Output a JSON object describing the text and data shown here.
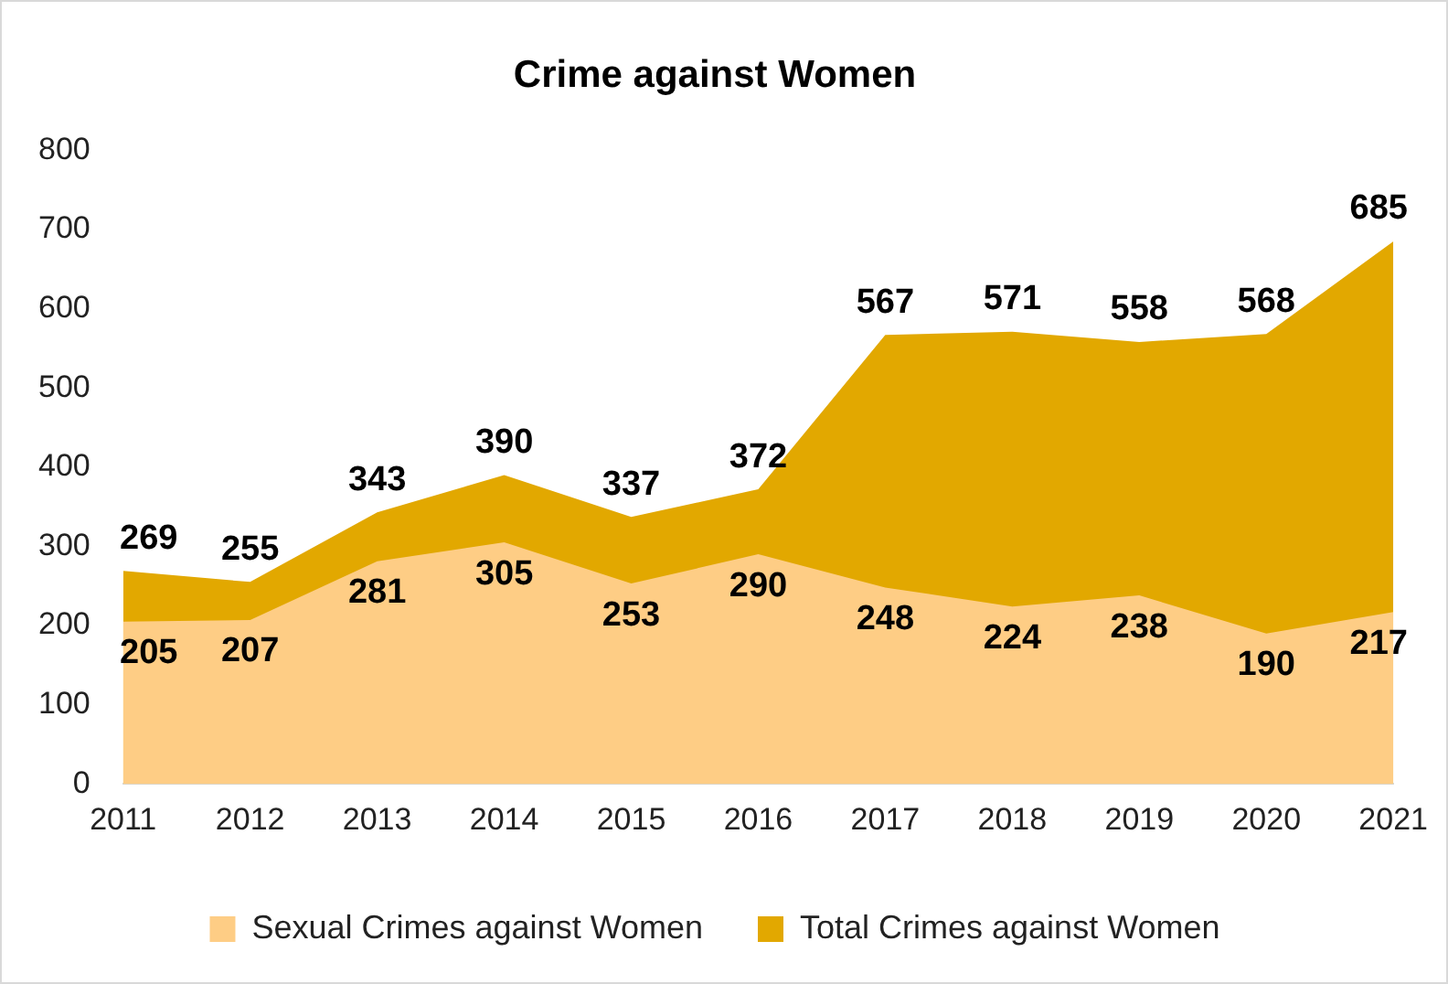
{
  "chart_data": {
    "type": "area",
    "title": "Crime against Women",
    "categories": [
      "2011",
      "2012",
      "2013",
      "2014",
      "2015",
      "2016",
      "2017",
      "2018",
      "2019",
      "2020",
      "2021"
    ],
    "series": [
      {
        "name": "Total Crimes against Women",
        "color": "#e2a800",
        "values": [
          269,
          255,
          343,
          390,
          337,
          372,
          567,
          571,
          558,
          568,
          685
        ]
      },
      {
        "name": "Sexual Crimes against Women",
        "color": "#fecd85",
        "values": [
          205,
          207,
          281,
          305,
          253,
          290,
          248,
          224,
          238,
          190,
          217
        ]
      }
    ],
    "ylim": [
      0,
      800
    ],
    "yticks": [
      0,
      100,
      200,
      300,
      400,
      500,
      600,
      700,
      800
    ],
    "grid": false,
    "legend": "bottom",
    "data_labels": true
  }
}
